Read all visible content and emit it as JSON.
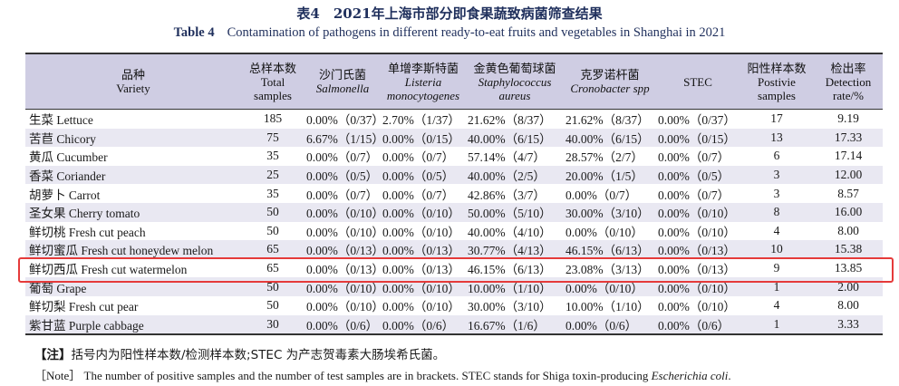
{
  "caption": {
    "cn": "表4　2021年上海市部分即食果蔬致病菌筛查结果",
    "en_label": "Table 4",
    "en_text": "Contamination of pathogens in different ready-to-eat fruits and vegetables in Shanghai in 2021"
  },
  "headers": [
    {
      "cn": "品种",
      "en": "Variety",
      "en_italic": false
    },
    {
      "cn": "总样本数",
      "en": "Total samples",
      "en_italic": false
    },
    {
      "cn": "沙门氏菌",
      "en": "Salmonella",
      "en_italic": true
    },
    {
      "cn": "单增李斯特菌",
      "en": "Listeria monocytogenes",
      "en_italic": true
    },
    {
      "cn": "金黄色葡萄球菌",
      "en": "Staphylococcus aureus",
      "en_italic": true
    },
    {
      "cn": "克罗诺杆菌",
      "en": "Cronobacter spp",
      "en_italic": true
    },
    {
      "cn": "",
      "en": "STEC",
      "en_italic": false
    },
    {
      "cn": "阳性样本数",
      "en": "Postivie samples",
      "en_italic": false
    },
    {
      "cn": "检出率",
      "en": "Detection rate/%",
      "en_italic": false
    }
  ],
  "rows": [
    {
      "variety": "生菜 Lettuce",
      "total": "185",
      "salmonella": "0.00%（0/37）",
      "listeria": "2.70%（1/37）",
      "staph": "21.62%（8/37）",
      "crono": "21.62%（8/37）",
      "stec": "0.00%（0/37）",
      "positive": "17",
      "rate": "9.19"
    },
    {
      "variety": "苦苣 Chicory",
      "total": "75",
      "salmonella": "6.67%（1/15）",
      "listeria": "0.00%（0/15）",
      "staph": "40.00%（6/15）",
      "crono": "40.00%（6/15）",
      "stec": "0.00%（0/15）",
      "positive": "13",
      "rate": "17.33"
    },
    {
      "variety": "黄瓜 Cucumber",
      "total": "35",
      "salmonella": "0.00%（0/7）",
      "listeria": "0.00%（0/7）",
      "staph": "57.14%（4/7）",
      "crono": "28.57%（2/7）",
      "stec": "0.00%（0/7）",
      "positive": "6",
      "rate": "17.14"
    },
    {
      "variety": "香菜 Coriander",
      "total": "25",
      "salmonella": "0.00%（0/5）",
      "listeria": "0.00%（0/5）",
      "staph": "40.00%（2/5）",
      "crono": "20.00%（1/5）",
      "stec": "0.00%（0/5）",
      "positive": "3",
      "rate": "12.00"
    },
    {
      "variety": "胡萝卜 Carrot",
      "total": "35",
      "salmonella": "0.00%（0/7）",
      "listeria": "0.00%（0/7）",
      "staph": "42.86%（3/7）",
      "crono": "0.00%（0/7）",
      "stec": "0.00%（0/7）",
      "positive": "3",
      "rate": "8.57"
    },
    {
      "variety": "圣女果 Cherry tomato",
      "total": "50",
      "salmonella": "0.00%（0/10）",
      "listeria": "0.00%（0/10）",
      "staph": "50.00%（5/10）",
      "crono": "30.00%（3/10）",
      "stec": "0.00%（0/10）",
      "positive": "8",
      "rate": "16.00"
    },
    {
      "variety": "鲜切桃 Fresh cut peach",
      "total": "50",
      "salmonella": "0.00%（0/10）",
      "listeria": "0.00%（0/10）",
      "staph": "40.00%（4/10）",
      "crono": "0.00%（0/10）",
      "stec": "0.00%（0/10）",
      "positive": "4",
      "rate": "8.00"
    },
    {
      "variety": "鲜切蜜瓜 Fresh cut honeydew melon",
      "total": "65",
      "salmonella": "0.00%（0/13）",
      "listeria": "0.00%（0/13）",
      "staph": "30.77%（4/13）",
      "crono": "46.15%（6/13）",
      "stec": "0.00%（0/13）",
      "positive": "10",
      "rate": "15.38"
    },
    {
      "variety": "鲜切西瓜 Fresh cut watermelon",
      "total": "65",
      "salmonella": "0.00%（0/13）",
      "listeria": "0.00%（0/13）",
      "staph": "46.15%（6/13）",
      "crono": "23.08%（3/13）",
      "stec": "0.00%（0/13）",
      "positive": "9",
      "rate": "13.85"
    },
    {
      "variety": "葡萄 Grape",
      "total": "50",
      "salmonella": "0.00%（0/10）",
      "listeria": "0.00%（0/10）",
      "staph": "10.00%（1/10）",
      "crono": "0.00%（0/10）",
      "stec": "0.00%（0/10）",
      "positive": "1",
      "rate": "2.00"
    },
    {
      "variety": "鲜切梨 Fresh cut pear",
      "total": "50",
      "salmonella": "0.00%（0/10）",
      "listeria": "0.00%（0/10）",
      "staph": "30.00%（3/10）",
      "crono": "10.00%（1/10）",
      "stec": "0.00%（0/10）",
      "positive": "4",
      "rate": "8.00"
    },
    {
      "variety": "紫甘蓝 Purple cabbage",
      "total": "30",
      "salmonella": "0.00%（0/6）",
      "listeria": "0.00%（0/6）",
      "staph": "16.67%（1/6）",
      "crono": "0.00%（0/6）",
      "stec": "0.00%（0/6）",
      "positive": "1",
      "rate": "3.33"
    }
  ],
  "highlight_color": "#e53a3a",
  "notes": {
    "cn_label": "【注】",
    "cn_text": "括号内为阳性样本数/检测样本数;STEC 为产志贺毒素大肠埃希氏菌。",
    "en_label": "［Note］",
    "en_text": "The number of positive samples and the number of test samples are in brackets. STEC stands for Shiga toxin-producing",
    "en_italic": "Escherichia coli",
    "en_end": "."
  }
}
